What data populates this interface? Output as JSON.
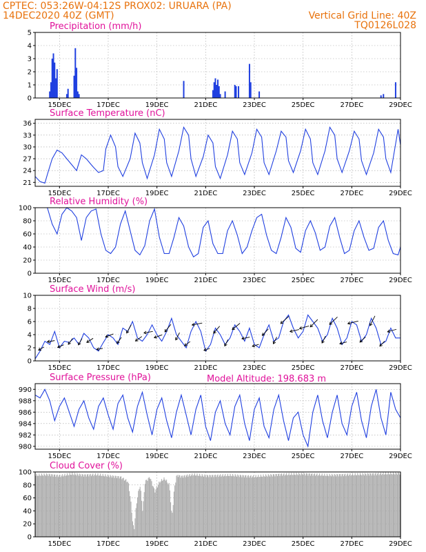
{
  "header": {
    "line1_left": "CPTEC:   053:26W-04:12S   PROX02: URUARA (PA)",
    "line2_left": "14DEC2020 40Z (GMT)",
    "line2_right": "Vertical Grid Line: 40Z",
    "line3_right": "TQ0126L028"
  },
  "model_altitude": "Model Altitude: 198.683 m",
  "x_ticks": [
    "15DEC",
    "17DEC",
    "19DEC",
    "21DEC",
    "23DEC",
    "25DEC",
    "27DEC",
    "29DEC"
  ],
  "x_tick_days": [
    15,
    17,
    19,
    21,
    23,
    25,
    27,
    29
  ],
  "x_range_days": [
    14.0,
    29.0
  ],
  "colors": {
    "series": "#1f3fe0",
    "cloud": "#a9a9a9",
    "title": "#e0119a",
    "header": "#e8720c"
  },
  "chart_data": [
    {
      "id": "precip",
      "type": "bar",
      "title": "Precipitation (mm/h)",
      "ylim": [
        0,
        5
      ],
      "yticks": [
        0,
        1,
        2,
        3,
        4,
        5
      ],
      "x_unit": "day of December 2020",
      "x": [
        14.6,
        14.65,
        14.7,
        14.75,
        14.8,
        14.85,
        14.9,
        15.3,
        15.35,
        15.6,
        15.65,
        15.7,
        15.75,
        15.8,
        20.1,
        21.3,
        21.35,
        21.4,
        21.45,
        21.5,
        21.55,
        21.6,
        21.8,
        22.2,
        22.25,
        22.35,
        22.8,
        22.85,
        23.2,
        28.2,
        28.3,
        28.8
      ],
      "values": [
        0.5,
        1.2,
        3.0,
        3.4,
        2.7,
        1.5,
        2.2,
        0.3,
        0.7,
        1.7,
        3.8,
        2.3,
        0.5,
        0.3,
        1.3,
        0.6,
        1.2,
        1.5,
        1.0,
        1.4,
        0.9,
        0.3,
        0.5,
        1.0,
        0.9,
        0.9,
        2.6,
        1.2,
        0.5,
        0.2,
        0.3,
        1.2
      ]
    },
    {
      "id": "temp",
      "type": "line",
      "title": "Surface Temperature (nC)",
      "ylim": [
        20,
        37
      ],
      "yticks": [
        21,
        24,
        27,
        30,
        33,
        36
      ],
      "x_unit": "day of December 2020",
      "x": [
        14.0,
        14.2,
        14.4,
        14.5,
        14.7,
        14.9,
        15.1,
        15.3,
        15.5,
        15.7,
        15.9,
        16.1,
        16.3,
        16.4,
        16.6,
        16.8,
        16.9,
        17.1,
        17.3,
        17.4,
        17.6,
        17.9,
        18.1,
        18.3,
        18.4,
        18.6,
        18.9,
        19.1,
        19.3,
        19.4,
        19.6,
        19.9,
        20.1,
        20.3,
        20.4,
        20.6,
        20.9,
        21.1,
        21.3,
        21.4,
        21.6,
        21.9,
        22.1,
        22.3,
        22.4,
        22.6,
        22.9,
        23.1,
        23.3,
        23.4,
        23.6,
        23.9,
        24.1,
        24.3,
        24.4,
        24.6,
        24.9,
        25.1,
        25.3,
        25.4,
        25.6,
        25.9,
        26.1,
        26.3,
        26.4,
        26.6,
        26.9,
        27.1,
        27.3,
        27.4,
        27.6,
        27.9,
        28.1,
        28.3,
        28.4,
        28.6,
        28.9,
        29.0
      ],
      "values": [
        22.5,
        21.2,
        20.8,
        23.0,
        27.0,
        29.2,
        28.5,
        27.0,
        25.5,
        24.0,
        28.0,
        27.0,
        25.5,
        24.8,
        23.5,
        24.0,
        29.5,
        33.0,
        30.0,
        25.0,
        22.5,
        27.0,
        33.5,
        31.0,
        26.0,
        22.0,
        28.0,
        34.5,
        32.0,
        26.0,
        22.5,
        29.0,
        35.0,
        33.0,
        27.0,
        22.5,
        27.5,
        33.0,
        31.0,
        25.0,
        22.0,
        28.0,
        34.0,
        32.0,
        26.0,
        23.0,
        28.5,
        34.5,
        32.5,
        26.0,
        23.0,
        29.0,
        34.0,
        32.5,
        26.5,
        23.5,
        29.0,
        34.5,
        32.0,
        26.0,
        23.0,
        29.0,
        35.0,
        33.0,
        27.0,
        23.5,
        29.0,
        34.0,
        32.0,
        26.5,
        23.0,
        28.5,
        34.5,
        32.5,
        27.0,
        23.5,
        34.5,
        30.5
      ]
    },
    {
      "id": "rh",
      "type": "line",
      "title": "Relative Humidity (%)",
      "ylim": [
        0,
        100
      ],
      "yticks": [
        0,
        20,
        40,
        60,
        80,
        100
      ],
      "x_unit": "day of December 2020",
      "x": [
        14.0,
        14.3,
        14.5,
        14.7,
        14.9,
        15.1,
        15.3,
        15.5,
        15.7,
        15.9,
        16.1,
        16.3,
        16.5,
        16.7,
        16.9,
        17.1,
        17.3,
        17.5,
        17.7,
        17.9,
        18.1,
        18.3,
        18.5,
        18.7,
        18.9,
        19.1,
        19.3,
        19.5,
        19.7,
        19.9,
        20.1,
        20.3,
        20.5,
        20.7,
        20.9,
        21.1,
        21.3,
        21.5,
        21.7,
        21.9,
        22.1,
        22.3,
        22.5,
        22.7,
        22.9,
        23.1,
        23.3,
        23.5,
        23.7,
        23.9,
        24.1,
        24.3,
        24.5,
        24.7,
        24.9,
        25.1,
        25.3,
        25.5,
        25.7,
        25.9,
        26.1,
        26.3,
        26.5,
        26.7,
        26.9,
        27.1,
        27.3,
        27.5,
        27.7,
        27.9,
        28.1,
        28.3,
        28.5,
        28.7,
        28.9,
        29.0
      ],
      "values": [
        100,
        100,
        100,
        75,
        60,
        90,
        100,
        95,
        85,
        50,
        85,
        95,
        98,
        60,
        35,
        30,
        40,
        75,
        95,
        65,
        35,
        28,
        42,
        80,
        98,
        55,
        30,
        30,
        55,
        85,
        72,
        40,
        25,
        30,
        70,
        80,
        45,
        30,
        30,
        65,
        80,
        58,
        30,
        40,
        65,
        85,
        90,
        58,
        35,
        30,
        55,
        85,
        70,
        38,
        32,
        65,
        80,
        62,
        35,
        40,
        72,
        85,
        55,
        30,
        35,
        65,
        80,
        55,
        35,
        38,
        70,
        80,
        50,
        30,
        28,
        40
      ]
    },
    {
      "id": "wind",
      "type": "line",
      "title": "Surface Wind (m/s)",
      "ylim": [
        0,
        10
      ],
      "yticks": [
        0,
        2,
        4,
        6,
        8,
        10
      ],
      "x_unit": "day of December 2020",
      "x": [
        14.0,
        14.2,
        14.4,
        14.6,
        14.8,
        15.0,
        15.2,
        15.4,
        15.6,
        15.8,
        16.0,
        16.2,
        16.4,
        16.6,
        16.8,
        17.0,
        17.2,
        17.4,
        17.6,
        17.8,
        18.0,
        18.2,
        18.4,
        18.6,
        18.8,
        19.0,
        19.2,
        19.4,
        19.6,
        19.8,
        20.0,
        20.2,
        20.4,
        20.6,
        20.8,
        21.0,
        21.2,
        21.4,
        21.6,
        21.8,
        22.0,
        22.2,
        22.4,
        22.6,
        22.8,
        23.0,
        23.2,
        23.4,
        23.6,
        23.8,
        24.0,
        24.2,
        24.4,
        24.6,
        24.8,
        25.0,
        25.2,
        25.4,
        25.6,
        25.8,
        26.0,
        26.2,
        26.4,
        26.6,
        26.8,
        27.0,
        27.2,
        27.4,
        27.6,
        27.8,
        28.0,
        28.2,
        28.4,
        28.6,
        28.8,
        29.0
      ],
      "values": [
        0.3,
        1.5,
        3.0,
        2.5,
        4.5,
        2.0,
        3.0,
        2.8,
        3.5,
        2.5,
        4.2,
        3.5,
        2.0,
        1.5,
        2.8,
        4.0,
        3.5,
        2.5,
        5.0,
        4.5,
        6.0,
        3.5,
        3.0,
        4.0,
        5.5,
        4.0,
        3.0,
        4.5,
        6.5,
        4.0,
        3.0,
        2.0,
        4.5,
        6.0,
        4.5,
        1.5,
        2.5,
        5.0,
        4.0,
        2.5,
        3.5,
        5.5,
        4.5,
        3.0,
        5.0,
        2.5,
        2.0,
        4.0,
        5.5,
        3.0,
        3.5,
        6.0,
        7.0,
        5.0,
        3.5,
        4.5,
        7.0,
        6.0,
        5.0,
        3.0,
        4.0,
        6.5,
        5.0,
        2.5,
        3.5,
        6.0,
        5.5,
        3.0,
        4.0,
        6.5,
        5.0,
        2.5,
        3.0,
        5.0,
        3.5,
        3.5
      ]
    },
    {
      "id": "pressure",
      "type": "line",
      "title": "Surface Pressure (hPa)",
      "ylim": [
        979.5,
        991
      ],
      "yticks": [
        980,
        982,
        984,
        986,
        988,
        990
      ],
      "x_unit": "day of December 2020",
      "x": [
        14.0,
        14.2,
        14.4,
        14.6,
        14.8,
        15.0,
        15.2,
        15.4,
        15.6,
        15.8,
        16.0,
        16.2,
        16.4,
        16.6,
        16.8,
        17.0,
        17.2,
        17.4,
        17.6,
        17.8,
        18.0,
        18.2,
        18.4,
        18.6,
        18.8,
        19.0,
        19.2,
        19.4,
        19.6,
        19.8,
        20.0,
        20.2,
        20.4,
        20.6,
        20.8,
        21.0,
        21.2,
        21.4,
        21.6,
        21.8,
        22.0,
        22.2,
        22.4,
        22.6,
        22.8,
        23.0,
        23.2,
        23.4,
        23.6,
        23.8,
        24.0,
        24.2,
        24.4,
        24.6,
        24.8,
        25.0,
        25.2,
        25.4,
        25.6,
        25.8,
        26.0,
        26.2,
        26.4,
        26.6,
        26.8,
        27.0,
        27.2,
        27.4,
        27.6,
        27.8,
        28.0,
        28.2,
        28.4,
        28.6,
        28.8,
        29.0
      ],
      "values": [
        989.0,
        988.5,
        990.0,
        988.0,
        984.5,
        987.0,
        988.5,
        986.0,
        983.5,
        986.5,
        988.0,
        985.0,
        983.0,
        987.0,
        988.5,
        985.5,
        983.0,
        987.5,
        989.0,
        985.0,
        982.5,
        987.0,
        989.5,
        985.5,
        982.0,
        986.5,
        988.5,
        984.5,
        981.5,
        986.0,
        989.0,
        985.5,
        982.0,
        986.5,
        989.0,
        983.5,
        981.0,
        986.0,
        988.0,
        984.0,
        982.0,
        987.0,
        989.0,
        984.0,
        981.0,
        986.5,
        988.5,
        983.5,
        981.5,
        986.5,
        989.0,
        984.5,
        981.0,
        985.0,
        986.0,
        982.0,
        980.0,
        986.0,
        989.0,
        984.5,
        981.5,
        986.0,
        989.0,
        984.0,
        982.0,
        987.0,
        989.5,
        984.5,
        981.5,
        987.0,
        990.0,
        985.0,
        982.0,
        989.5,
        986.5,
        985.0
      ]
    },
    {
      "id": "cloud",
      "type": "area",
      "title": "Cloud Cover (%)",
      "ylim": [
        0,
        100
      ],
      "yticks": [
        0,
        20,
        40,
        60,
        80,
        100
      ],
      "x_unit": "day of December 2020",
      "x": [
        14.0,
        14.5,
        15.0,
        15.5,
        16.0,
        16.5,
        17.0,
        17.5,
        17.8,
        17.9,
        18.0,
        18.05,
        18.1,
        18.2,
        18.3,
        18.4,
        18.5,
        18.7,
        18.9,
        19.1,
        19.3,
        19.5,
        19.6,
        19.65,
        19.7,
        19.8,
        20.0,
        20.5,
        21.0,
        22.0,
        23.0,
        24.0,
        25.0,
        26.0,
        27.0,
        28.0,
        29.0
      ],
      "values": [
        95,
        96,
        94,
        97,
        95,
        96,
        94,
        92,
        85,
        60,
        20,
        10,
        35,
        65,
        80,
        40,
        85,
        92,
        70,
        85,
        90,
        80,
        30,
        50,
        75,
        95,
        93,
        96,
        94,
        95,
        93,
        96,
        97,
        95,
        96,
        97,
        98
      ]
    }
  ]
}
